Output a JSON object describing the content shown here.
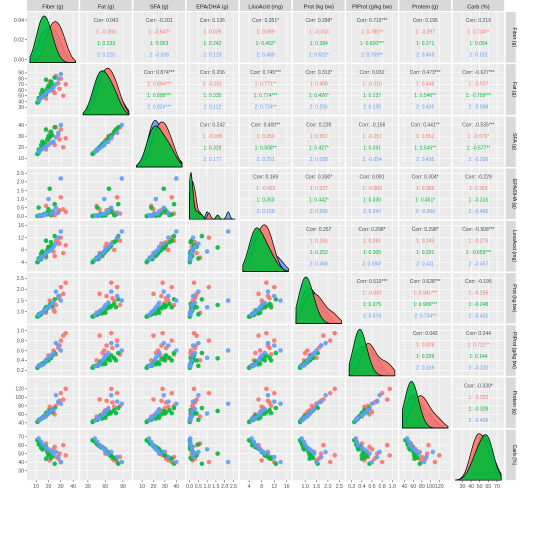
{
  "colors": {
    "panel_bg": "#ebebeb",
    "strip_bg": "#d9d9d9",
    "grid": "#ffffff",
    "overall_text": "#4d4d4d",
    "group1": "#f8766d",
    "group2": "#00ba38",
    "group3": "#619cff",
    "group2_density": "#1f9e35"
  },
  "chart_data": {
    "type": "scatter",
    "variables": [
      {
        "label": "Fiber (g)",
        "min": 5,
        "max": 42,
        "ticks": [
          10,
          20,
          30,
          40
        ],
        "yticks": [
          0.0,
          0.02,
          0.04
        ],
        "ytick_labels": [
          "0.00",
          "0.02",
          "0.04"
        ]
      },
      {
        "label": "Fat (g)",
        "min": 22,
        "max": 100,
        "ticks": [
          30,
          60,
          90
        ],
        "ytick_labels": [
          "30",
          "40",
          "50",
          "60",
          "70",
          "80",
          "90"
        ],
        "yticks": [
          30,
          40,
          50,
          60,
          70,
          80,
          90
        ]
      },
      {
        "label": "SFA (g)",
        "min": 5,
        "max": 45,
        "ticks": [
          10,
          20,
          30,
          40
        ],
        "yticks": [
          10,
          20,
          30,
          40
        ],
        "ytick_labels": [
          "10",
          "20",
          "30",
          "40"
        ]
      },
      {
        "label": "EPA/DHA (g)",
        "min": 0,
        "max": 2.6,
        "ticks": [
          0.0,
          0.5,
          1.0,
          1.5,
          2.0,
          2.5
        ],
        "tick_labels": [
          "0.0",
          "0.5",
          "1.0",
          "1.5",
          "2.0",
          "2.5"
        ],
        "yticks": [
          0.0,
          0.5,
          1.0,
          1.5,
          2.0,
          2.5
        ],
        "ytick_labels": [
          "0.0",
          "0.5",
          "1.0",
          "1.5",
          "2.0",
          "2.5"
        ]
      },
      {
        "label": "LinoAcid (mg)",
        "min": 2,
        "max": 16.5,
        "ticks": [
          4,
          8,
          12,
          16
        ],
        "yticks": [
          4,
          8,
          12,
          16
        ],
        "ytick_labels": [
          "4",
          "8",
          "12",
          "16"
        ]
      },
      {
        "label": "Prot (kg bw)",
        "min": 0.6,
        "max": 2.6,
        "ticks": [
          1.0,
          1.5,
          2.0,
          2.5
        ],
        "tick_labels": [
          "1.0",
          "1.5",
          "2.0",
          "2.5"
        ],
        "yticks": [
          1.0,
          1.5,
          2.0,
          2.5
        ],
        "ytick_labels": [
          "1.0",
          "1.5",
          "2.0",
          "2.5"
        ]
      },
      {
        "label": "PlProt (g/kg bw)",
        "min": 0.15,
        "max": 1.05,
        "ticks": [
          0.2,
          0.4,
          0.6,
          0.8,
          1.0
        ],
        "tick_labels": [
          "0.2",
          "0.4",
          "0.6",
          "0.8",
          "1.0"
        ],
        "yticks": [
          0.2,
          0.4,
          0.6,
          0.8,
          1.0
        ],
        "ytick_labels": [
          "0.2",
          "0.4",
          "0.6",
          "0.8",
          "1.0"
        ]
      },
      {
        "label": "Protein (g)",
        "min": 35,
        "max": 140,
        "ticks": [
          40,
          60,
          80,
          100,
          120
        ],
        "yticks": [
          40,
          60,
          80,
          100,
          120
        ],
        "ytick_labels": [
          "40",
          "60",
          "80",
          "100",
          "120"
        ]
      },
      {
        "label": "Carb (%)",
        "min": 22,
        "max": 75,
        "ticks": [
          30,
          40,
          50,
          60,
          70
        ],
        "yticks": [
          30,
          40,
          50,
          60,
          70
        ],
        "ytick_labels": [
          "30",
          "40",
          "50",
          "60",
          "70"
        ]
      }
    ],
    "groups": [
      "1",
      "2",
      "3"
    ],
    "correlations": [
      {
        "row": 0,
        "col": 1,
        "lines": [
          "Corr: 0.042",
          "1: -0.393",
          "1: 0.233",
          "2: 0.220"
        ]
      },
      {
        "row": 0,
        "col": 2,
        "lines": [
          "Corr: -0.201",
          "1: -0.647*",
          "1: 0.063",
          "2: -0.026"
        ]
      },
      {
        "row": 0,
        "col": 3,
        "lines": [
          "Corr: 0.126",
          "1: 0.025",
          "1: 0.242",
          "2: 0.123"
        ]
      },
      {
        "row": 0,
        "col": 4,
        "lines": [
          "Corr: 0.351*",
          "1: 0.099",
          "1: 0.402*",
          "2: 0.489"
        ]
      },
      {
        "row": 0,
        "col": 5,
        "lines": [
          "Corr: 0.298*",
          "1: -0.243",
          "1: 0.284",
          "2: 0.622*"
        ]
      },
      {
        "row": 0,
        "col": 6,
        "lines": [
          "Corr: 0.719***",
          "1: 0.785**",
          "1: 0.820***",
          "2: 0.759**"
        ]
      },
      {
        "row": 0,
        "col": 7,
        "lines": [
          "Corr: 0.195",
          "1: -0.297",
          "1: 0.271",
          "2: 0.459"
        ]
      },
      {
        "row": 0,
        "col": 8,
        "lines": [
          "Corr: 0.219",
          "1: 0.734**",
          "1: 0.054",
          "2: 0.152"
        ]
      },
      {
        "row": 1,
        "col": 2,
        "lines": [
          "Corr: 0.874***",
          "1: 0.894***",
          "1: 0.898***",
          "2: 0.824***"
        ]
      },
      {
        "row": 1,
        "col": 3,
        "lines": [
          "Corr: 0.206",
          "1: -0.301",
          "1: 0.335",
          "2: 0.112"
        ]
      },
      {
        "row": 1,
        "col": 4,
        "lines": [
          "Corr: 0.745***",
          "1: 0.771**",
          "1: 0.774***",
          "2: 0.724**"
        ]
      },
      {
        "row": 1,
        "col": 5,
        "lines": [
          "Corr: 0.313*",
          "1: 0.408",
          "1: 0.426*",
          "2: 0.256"
        ]
      },
      {
        "row": 1,
        "col": 6,
        "lines": [
          "Corr: 0.032",
          "1: -0.016",
          "1: 0.137",
          "2: 0.135"
        ]
      },
      {
        "row": 1,
        "col": 7,
        "lines": [
          "Corr: 0.473***",
          "1: 0.449",
          "1: 0.546**",
          "2: 0.435"
        ]
      },
      {
        "row": 1,
        "col": 8,
        "lines": [
          "Corr: -0.627***",
          "1: -0.507",
          "1: -0.709***",
          "2: -0.588"
        ]
      },
      {
        "row": 2,
        "col": 3,
        "lines": [
          "Corr: 0.242",
          "1: -0.099",
          "1: 0.329",
          "2: 0.177"
        ]
      },
      {
        "row": 2,
        "col": 4,
        "lines": [
          "Corr: 0.400**",
          "1: 0.350",
          "1: 0.508**",
          "2: 0.251"
        ]
      },
      {
        "row": 2,
        "col": 5,
        "lines": [
          "Corr: 0.239",
          "1: 0.557",
          "1: 0.427*",
          "2: 0.098"
        ]
      },
      {
        "row": 2,
        "col": 6,
        "lines": [
          "Corr: -0.156",
          "1: -0.257",
          "1: 0.091",
          "2: -0.054"
        ]
      },
      {
        "row": 2,
        "col": 7,
        "lines": [
          "Corr: 0.441**",
          "1: 0.552",
          "1: 0.545**",
          "2: 0.435"
        ]
      },
      {
        "row": 2,
        "col": 8,
        "lines": [
          "Corr: -0.535***",
          "1: -0.576*",
          "1: -0.577**",
          "2: -0.296"
        ]
      },
      {
        "row": 3,
        "col": 4,
        "lines": [
          "Corr: 0.169",
          "1: -0.422",
          "1: 0.350",
          "2: 0.158"
        ]
      },
      {
        "row": 3,
        "col": 5,
        "lines": [
          "Corr: 0.330*",
          "1: 0.527",
          "1: 0.442*",
          "2: 0.265"
        ]
      },
      {
        "row": 3,
        "col": 6,
        "lines": [
          "Corr: 0.091",
          "1: -0.003",
          "1: 0.330",
          "2: 0.247"
        ]
      },
      {
        "row": 3,
        "col": 7,
        "lines": [
          "Corr: 0.304*",
          "1: 0.382",
          "1: 0.461*",
          "2: -0.060"
        ]
      },
      {
        "row": 3,
        "col": 8,
        "lines": [
          "Corr: -0.229",
          "1: 0.353",
          "1: -0.315",
          "2: -0.460"
        ]
      },
      {
        "row": 4,
        "col": 5,
        "lines": [
          "Corr: 0.257",
          "1: 0.161",
          "1: 0.253",
          "2: 0.468"
        ]
      },
      {
        "row": 4,
        "col": 6,
        "lines": [
          "Corr: 0.298*",
          "1: 0.261",
          "1: 0.305",
          "2: 0.594*"
        ]
      },
      {
        "row": 4,
        "col": 7,
        "lines": [
          "Corr: 0.298*",
          "1: 0.143",
          "1: 0.291",
          "2: 0.411"
        ]
      },
      {
        "row": 4,
        "col": 8,
        "lines": [
          "Corr: -0.508***",
          "1: -0.273",
          "1: -0.659***",
          "2: -0.457"
        ]
      },
      {
        "row": 5,
        "col": 6,
        "lines": [
          "Corr: 0.519***",
          "1: -0.007",
          "1: 0.375",
          "2: 0.579"
        ]
      },
      {
        "row": 5,
        "col": 7,
        "lines": [
          "Corr: 0.628***",
          "1: 0.941***",
          "1: 0.909***",
          "2: 0.734**"
        ]
      },
      {
        "row": 5,
        "col": 8,
        "lines": [
          "Corr: -0.195",
          "1: -0.255",
          "1: -0.248",
          "2: -0.431"
        ]
      },
      {
        "row": 6,
        "col": 7,
        "lines": [
          "Corr: 0.042",
          "1: 0.028",
          "1: 0.299",
          "2: 0.159"
        ]
      },
      {
        "row": 6,
        "col": 8,
        "lines": [
          "Corr: 0.244",
          "1: 0.711**",
          "1: 0.144",
          "2: -0.120"
        ]
      },
      {
        "row": 7,
        "col": 8,
        "lines": [
          "Corr: -0.330*",
          "1: -0.393",
          "1: -0.328",
          "2: -0.409"
        ]
      }
    ],
    "observations": [
      {
        "group": 0,
        "v": [
          20,
          60,
          26,
          0.12,
          9.0,
          1.2,
          0.5,
          70,
          50
        ]
      },
      {
        "group": 0,
        "v": [
          28,
          72,
          31,
          0.3,
          10.5,
          1.6,
          0.65,
          88,
          44
        ]
      },
      {
        "group": 0,
        "v": [
          25,
          55,
          22,
          0.05,
          6.0,
          1.0,
          0.55,
          60,
          58
        ]
      },
      {
        "group": 0,
        "v": [
          30,
          80,
          36,
          1.1,
          12.0,
          2.1,
          0.8,
          110,
          40
        ]
      },
      {
        "group": 0,
        "v": [
          22,
          65,
          30,
          0.2,
          8.5,
          1.4,
          0.48,
          75,
          52
        ]
      },
      {
        "group": 0,
        "v": [
          32,
          50,
          20,
          0.4,
          7.0,
          1.8,
          0.9,
          95,
          60
        ]
      },
      {
        "group": 0,
        "v": [
          26,
          85,
          38,
          0.15,
          11.0,
          1.3,
          0.52,
          80,
          46
        ]
      },
      {
        "group": 0,
        "v": [
          18,
          45,
          18,
          0.6,
          5.5,
          0.95,
          0.4,
          55,
          62
        ]
      },
      {
        "group": 0,
        "v": [
          34,
          70,
          28,
          0.25,
          9.5,
          2.3,
          0.95,
          120,
          48
        ]
      },
      {
        "group": 0,
        "v": [
          24,
          58,
          24,
          0.08,
          7.5,
          1.1,
          0.6,
          66,
          55
        ]
      },
      {
        "group": 0,
        "v": [
          29,
          62,
          27,
          0.35,
          10.0,
          1.7,
          0.7,
          92,
          50
        ]
      },
      {
        "group": 0,
        "v": [
          21,
          75,
          33,
          0.18,
          8.0,
          1.5,
          0.45,
          78,
          42
        ]
      },
      {
        "group": 1,
        "v": [
          14,
          48,
          19,
          0.03,
          5.0,
          0.9,
          0.3,
          50,
          60
        ]
      },
      {
        "group": 1,
        "v": [
          16,
          55,
          23,
          0.1,
          6.5,
          1.0,
          0.35,
          55,
          57
        ]
      },
      {
        "group": 1,
        "v": [
          12,
          40,
          15,
          0.02,
          4.5,
          0.8,
          0.28,
          45,
          65
        ]
      },
      {
        "group": 1,
        "v": [
          20,
          68,
          30,
          0.4,
          9.0,
          1.2,
          0.4,
          62,
          48
        ]
      },
      {
        "group": 1,
        "v": [
          22,
          75,
          34,
          0.06,
          10.5,
          1.35,
          0.45,
          70,
          45
        ]
      },
      {
        "group": 1,
        "v": [
          18,
          52,
          21,
          0.15,
          6.0,
          1.05,
          0.38,
          58,
          58
        ]
      },
      {
        "group": 1,
        "v": [
          15,
          60,
          25,
          0.05,
          7.5,
          0.95,
          0.33,
          52,
          55
        ]
      },
      {
        "group": 1,
        "v": [
          25,
          82,
          38,
          0.7,
          12.5,
          1.55,
          0.55,
          75,
          38
        ]
      },
      {
        "group": 1,
        "v": [
          13,
          45,
          17,
          0.04,
          5.5,
          0.85,
          0.3,
          48,
          62
        ]
      },
      {
        "group": 1,
        "v": [
          17,
          58,
          24,
          0.12,
          7.0,
          1.1,
          0.36,
          56,
          56
        ]
      },
      {
        "group": 1,
        "v": [
          19,
          63,
          27,
          0.2,
          8.0,
          1.15,
          0.42,
          60,
          52
        ]
      },
      {
        "group": 1,
        "v": [
          11,
          38,
          14,
          0.01,
          4.0,
          0.78,
          0.25,
          42,
          66
        ]
      },
      {
        "group": 1,
        "v": [
          23,
          70,
          31,
          0.25,
          9.5,
          1.25,
          0.5,
          65,
          47
        ]
      },
      {
        "group": 1,
        "v": [
          16,
          50,
          20,
          0.08,
          6.2,
          1.0,
          0.34,
          54,
          59
        ]
      },
      {
        "group": 1,
        "v": [
          21,
          66,
          29,
          1.6,
          8.8,
          1.3,
          0.44,
          68,
          50
        ]
      },
      {
        "group": 1,
        "v": [
          14,
          54,
          22,
          0.03,
          6.8,
          0.92,
          0.32,
          50,
          57
        ]
      },
      {
        "group": 1,
        "v": [
          18,
          78,
          36,
          0.1,
          11.0,
          1.2,
          0.4,
          63,
          44
        ]
      },
      {
        "group": 1,
        "v": [
          12,
          46,
          18,
          0.5,
          5.2,
          0.88,
          0.29,
          47,
          61
        ]
      },
      {
        "group": 2,
        "v": [
          24,
          65,
          25,
          0.3,
          9.0,
          1.4,
          0.55,
          72,
          50
        ]
      },
      {
        "group": 2,
        "v": [
          16,
          50,
          19,
          0.06,
          6.0,
          1.0,
          0.32,
          52,
          60
        ]
      },
      {
        "group": 2,
        "v": [
          28,
          80,
          33,
          0.2,
          12.0,
          1.7,
          0.7,
          90,
          46
        ]
      },
      {
        "group": 2,
        "v": [
          20,
          58,
          22,
          1.0,
          7.5,
          1.2,
          0.45,
          62,
          55
        ]
      },
      {
        "group": 2,
        "v": [
          12,
          42,
          16,
          0.04,
          4.8,
          0.85,
          0.28,
          46,
          68
        ]
      },
      {
        "group": 2,
        "v": [
          26,
          70,
          29,
          0.5,
          10.0,
          1.9,
          0.75,
          105,
          52
        ]
      },
      {
        "group": 2,
        "v": [
          18,
          55,
          21,
          0.12,
          7.0,
          1.1,
          0.4,
          58,
          57
        ]
      },
      {
        "group": 2,
        "v": [
          30,
          88,
          40,
          2.2,
          14.0,
          1.5,
          0.6,
          85,
          40
        ]
      },
      {
        "group": 2,
        "v": [
          22,
          60,
          24,
          0.15,
          8.0,
          1.3,
          0.5,
          68,
          53
        ]
      },
      {
        "group": 2,
        "v": [
          14,
          46,
          18,
          0.02,
          5.5,
          0.95,
          0.3,
          50,
          64
        ]
      }
    ]
  }
}
